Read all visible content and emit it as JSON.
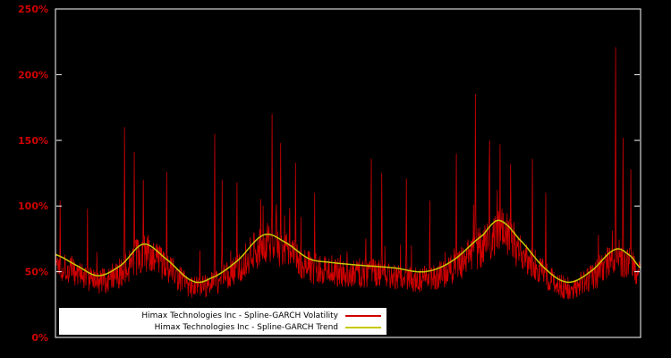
{
  "chart": {
    "background_color": "#000000",
    "plot_border_color": "#ffffff",
    "axis_label_color": "#d00000"
  },
  "chart_data": {
    "type": "line",
    "title": "",
    "xlabel": "",
    "ylabel": "",
    "ylim": [
      0,
      250
    ],
    "ytick_values": [
      0,
      50,
      100,
      150,
      200,
      250
    ],
    "ytick_labels": [
      "0%",
      "50%",
      "100%",
      "150%",
      "200%",
      "250%"
    ],
    "xtick_labels": [],
    "grid": false,
    "legend_position": "bottom-left-inside",
    "series": [
      {
        "name": "Himax Technologies Inc - Spline-GARCH Volatility",
        "color": "#d00000",
        "style": "noisy-line"
      },
      {
        "name": "Himax Technologies Inc - Spline-GARCH Trend",
        "color": "#c8c800",
        "style": "smooth-line"
      }
    ],
    "trend_control_points": [
      [
        0,
        63
      ],
      [
        0.035,
        55
      ],
      [
        0.073,
        47
      ],
      [
        0.112,
        55
      ],
      [
        0.15,
        71
      ],
      [
        0.188,
        60
      ],
      [
        0.234,
        43
      ],
      [
        0.265,
        45
      ],
      [
        0.31,
        58
      ],
      [
        0.356,
        78
      ],
      [
        0.394,
        72
      ],
      [
        0.433,
        60
      ],
      [
        0.471,
        57
      ],
      [
        0.517,
        55
      ],
      [
        0.578,
        53
      ],
      [
        0.631,
        50
      ],
      [
        0.677,
        58
      ],
      [
        0.731,
        78
      ],
      [
        0.758,
        89
      ],
      [
        0.792,
        75
      ],
      [
        0.838,
        52
      ],
      [
        0.876,
        42
      ],
      [
        0.914,
        50
      ],
      [
        0.957,
        67
      ],
      [
        0.983,
        62
      ],
      [
        1,
        53
      ]
    ],
    "volatility_spikes": [
      [
        0.008,
        104
      ],
      [
        0.055,
        98
      ],
      [
        0.118,
        160
      ],
      [
        0.135,
        141
      ],
      [
        0.15,
        120
      ],
      [
        0.19,
        126
      ],
      [
        0.272,
        155
      ],
      [
        0.285,
        120
      ],
      [
        0.31,
        118
      ],
      [
        0.37,
        170
      ],
      [
        0.385,
        148
      ],
      [
        0.41,
        133
      ],
      [
        0.443,
        110
      ],
      [
        0.54,
        136
      ],
      [
        0.558,
        125
      ],
      [
        0.6,
        121
      ],
      [
        0.64,
        104
      ],
      [
        0.685,
        140
      ],
      [
        0.718,
        185
      ],
      [
        0.742,
        150
      ],
      [
        0.76,
        147
      ],
      [
        0.778,
        132
      ],
      [
        0.815,
        136
      ],
      [
        0.838,
        110
      ],
      [
        0.957,
        221
      ],
      [
        0.97,
        152
      ],
      [
        0.983,
        128
      ]
    ],
    "noise": {
      "seed": 1337,
      "points": 1500,
      "base": 0.9,
      "jitter": 0.42,
      "spike_probability": 0.035,
      "spike_scale": 0.55,
      "floor_percent": 29
    }
  }
}
